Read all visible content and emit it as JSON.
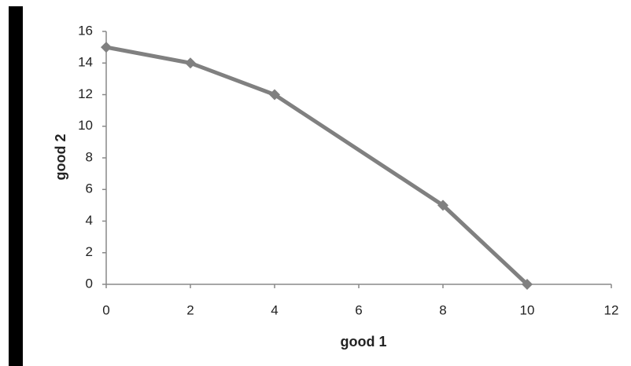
{
  "chart_data": {
    "type": "line",
    "x_label": "good 1",
    "y_label": "good 2",
    "x": [
      0,
      2,
      4,
      8,
      10
    ],
    "values": [
      15,
      14,
      12,
      5,
      0
    ],
    "color": "#808080",
    "xlim": [
      0,
      12
    ],
    "xticks": [
      0,
      2,
      4,
      6,
      8,
      10,
      12
    ],
    "ylim": [
      0,
      16
    ],
    "yticks": [
      0,
      2,
      4,
      6,
      8,
      10,
      12,
      14,
      16
    ],
    "grid": false
  }
}
